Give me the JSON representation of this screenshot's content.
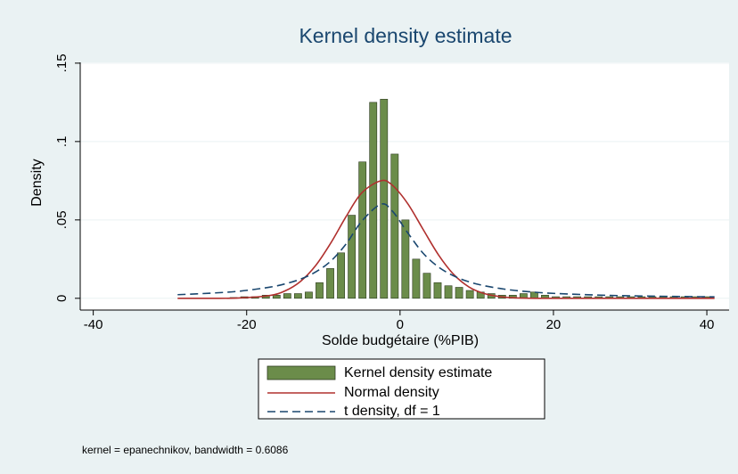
{
  "chart_data": {
    "type": "bar",
    "title": "Kernel density estimate",
    "xlabel": "Solde budgétaire (%PIB)",
    "ylabel": "Density",
    "note": "kernel = epanechnikov, bandwidth = 0.6086",
    "xlim": [
      -41.7,
      42.9
    ],
    "xticks": [
      -40,
      -20,
      0,
      20,
      40
    ],
    "ylim": [
      -0.0075,
      0.1505
    ],
    "yticks": [
      0,
      {
        "value": 0.05,
        "label": ".05"
      },
      {
        "value": 0.1,
        "label": ".1"
      },
      {
        "value": 0.15,
        "label": ".15"
      }
    ],
    "grid": true,
    "bars": {
      "name": "Kernel density estimate",
      "color": "#6b8c4a",
      "x": [
        -21.7,
        -20.3,
        -18.9,
        -17.5,
        -16.1,
        -14.7,
        -13.3,
        -11.9,
        -10.5,
        -9.1,
        -7.7,
        -6.3,
        -4.9,
        -3.5,
        -2.1,
        -0.7,
        0.7,
        2.1,
        3.5,
        4.9,
        6.3,
        7.7,
        9.1,
        10.5,
        11.9,
        13.3,
        14.7,
        16.1,
        17.5,
        18.9,
        20.3,
        21.7,
        23.1,
        24.5,
        25.9,
        27.3,
        28.7,
        30.1,
        31.5,
        32.9,
        34.3,
        35.7,
        37.1,
        38.5,
        39.9
      ],
      "values": [
        0.0005,
        0.001,
        0.001,
        0.002,
        0.002,
        0.003,
        0.003,
        0.004,
        0.01,
        0.019,
        0.029,
        0.053,
        0.087,
        0.125,
        0.127,
        0.092,
        0.05,
        0.025,
        0.016,
        0.01,
        0.008,
        0.007,
        0.005,
        0.004,
        0.003,
        0.002,
        0.002,
        0.003,
        0.004,
        0.002,
        0.001,
        0.001,
        0.001,
        0.001,
        0.001,
        0.001,
        0.001,
        0.001,
        0.001,
        0.001,
        0.001,
        0.001,
        0.001,
        0.001,
        0.001
      ]
    },
    "x": [
      -29,
      -25,
      -21,
      -17,
      -15,
      -13,
      -11,
      -9,
      -7,
      -5,
      -2.5,
      -1,
      1,
      3,
      5,
      7,
      9,
      11,
      13,
      15,
      19,
      25,
      31,
      41
    ],
    "series": [
      {
        "name": "Normal density",
        "color": "#b0302e",
        "dash": false,
        "values": [
          0,
          0,
          0.0002,
          0.0018,
          0.0047,
          0.0107,
          0.0209,
          0.0355,
          0.0524,
          0.0672,
          0.075,
          0.0721,
          0.0604,
          0.044,
          0.0278,
          0.0152,
          0.0072,
          0.003,
          0.0011,
          0.0003,
          0,
          0,
          0,
          0
        ]
      },
      {
        "name": "t density, df = 1",
        "color": "#1a476f",
        "dash": true,
        "values": [
          0.0023,
          0.0032,
          0.0045,
          0.0071,
          0.0092,
          0.0122,
          0.0168,
          0.0239,
          0.0349,
          0.0491,
          0.06,
          0.0556,
          0.0418,
          0.0288,
          0.02,
          0.0143,
          0.0105,
          0.008,
          0.0063,
          0.005,
          0.0034,
          0.0022,
          0.0015,
          0.0009
        ]
      }
    ]
  }
}
